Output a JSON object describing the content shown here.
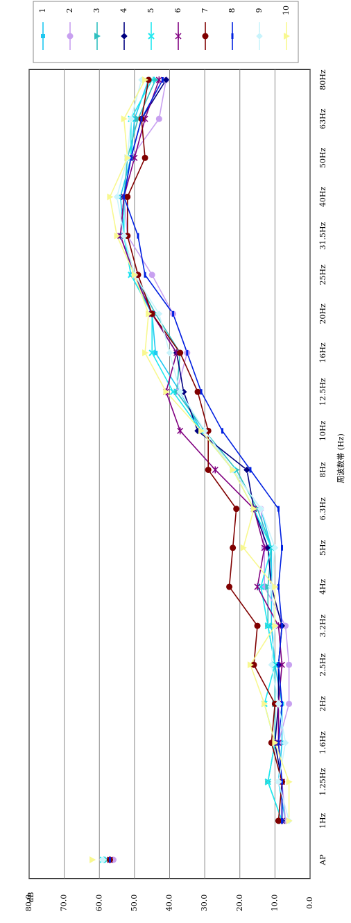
{
  "chart_data": {
    "type": "line",
    "y_label": "dB",
    "x_label": "周波数帯 (Hz)",
    "categories": [
      "AP",
      "1Hz",
      "1.25Hz",
      "1.6Hz",
      "2Hz",
      "2.5Hz",
      "3.2Hz",
      "4Hz",
      "5Hz",
      "6.3Hz",
      "8Hz",
      "10Hz",
      "12.5Hz",
      "16Hz",
      "20Hz",
      "25Hz",
      "31.5Hz",
      "40Hz",
      "50Hz",
      "63Hz",
      "80Hz"
    ],
    "ylim": [
      0,
      80
    ],
    "yticks": [
      {
        "value": 0,
        "label": "0.0"
      },
      {
        "value": 10,
        "label": "10.0"
      },
      {
        "value": 20,
        "label": "20.0"
      },
      {
        "value": 30,
        "label": "30.0"
      },
      {
        "value": 40,
        "label": "40.0"
      },
      {
        "value": 50,
        "label": "50.0"
      },
      {
        "value": 60,
        "label": "60.0"
      },
      {
        "value": 70,
        "label": "70.0"
      },
      {
        "value": 80,
        "label": "80.0"
      }
    ],
    "grid": true,
    "legend": "top-right",
    "series": [
      {
        "name": "1",
        "color": "#1ec8f0",
        "marker": "square",
        "values": [
          59,
          7,
          9,
          8,
          8,
          10,
          11,
          11,
          11,
          14,
          22,
          31,
          37,
          44,
          45,
          51,
          53,
          54,
          51,
          50,
          46
        ]
      },
      {
        "name": "2",
        "color": "#c8a0f0",
        "marker": "circle",
        "values": [
          56,
          7,
          8,
          9,
          6,
          6,
          7,
          13,
          13,
          14,
          22,
          30,
          38,
          35,
          39,
          45,
          52,
          53,
          51,
          43,
          41
        ]
      },
      {
        "name": "3",
        "color": "#30c0c0",
        "marker": "triangle",
        "values": [
          58,
          8,
          12,
          10,
          10,
          10,
          12,
          12,
          11,
          15,
          21,
          30,
          38,
          37,
          44,
          50,
          53,
          53,
          52,
          49,
          44
        ]
      },
      {
        "name": "4",
        "color": "#000080",
        "marker": "diamond",
        "values": [
          57,
          8,
          8,
          10,
          9,
          9,
          8,
          11,
          12,
          16,
          18,
          32,
          36,
          38,
          45,
          50,
          54,
          53,
          51,
          48,
          41
        ]
      },
      {
        "name": "5",
        "color": "#20e8f0",
        "marker": "x",
        "values": [
          59,
          8,
          12,
          10,
          13,
          10,
          12,
          14,
          11,
          16,
          22,
          31,
          39,
          45,
          45,
          51,
          53,
          53,
          51,
          51,
          45
        ]
      },
      {
        "name": "6",
        "color": "#800080",
        "marker": "star",
        "values": [
          57,
          8,
          8,
          9,
          9,
          8,
          9,
          15,
          13,
          16,
          27,
          37,
          41,
          38,
          45,
          50,
          54,
          53,
          50,
          47,
          43
        ]
      },
      {
        "name": "7",
        "color": "#800000",
        "marker": "circle",
        "values": [
          57,
          9,
          8,
          11,
          10,
          16,
          15,
          23,
          22,
          21,
          29,
          29,
          32,
          37,
          45,
          49,
          52,
          52,
          47,
          48,
          46
        ]
      },
      {
        "name": "8",
        "color": "#0020e0",
        "marker": "dash",
        "values": [
          57,
          8,
          8,
          9,
          8,
          9,
          8,
          9,
          8,
          9,
          17,
          25,
          31,
          35,
          39,
          47,
          49,
          53,
          51,
          48,
          42
        ]
      },
      {
        "name": "9",
        "color": "#c8f4fc",
        "marker": "diamond",
        "values": [
          59,
          6,
          9,
          7,
          9,
          11,
          10,
          11,
          10,
          14,
          22,
          30,
          37,
          40,
          43,
          50,
          53,
          55,
          52,
          51,
          48
        ]
      },
      {
        "name": "10",
        "color": "#f8f890",
        "marker": "triangle",
        "values": [
          62,
          6,
          6,
          10,
          13,
          17,
          10,
          10,
          19,
          16,
          22,
          31,
          41,
          47,
          46,
          50,
          55,
          57,
          52,
          53,
          47
        ]
      }
    ]
  }
}
